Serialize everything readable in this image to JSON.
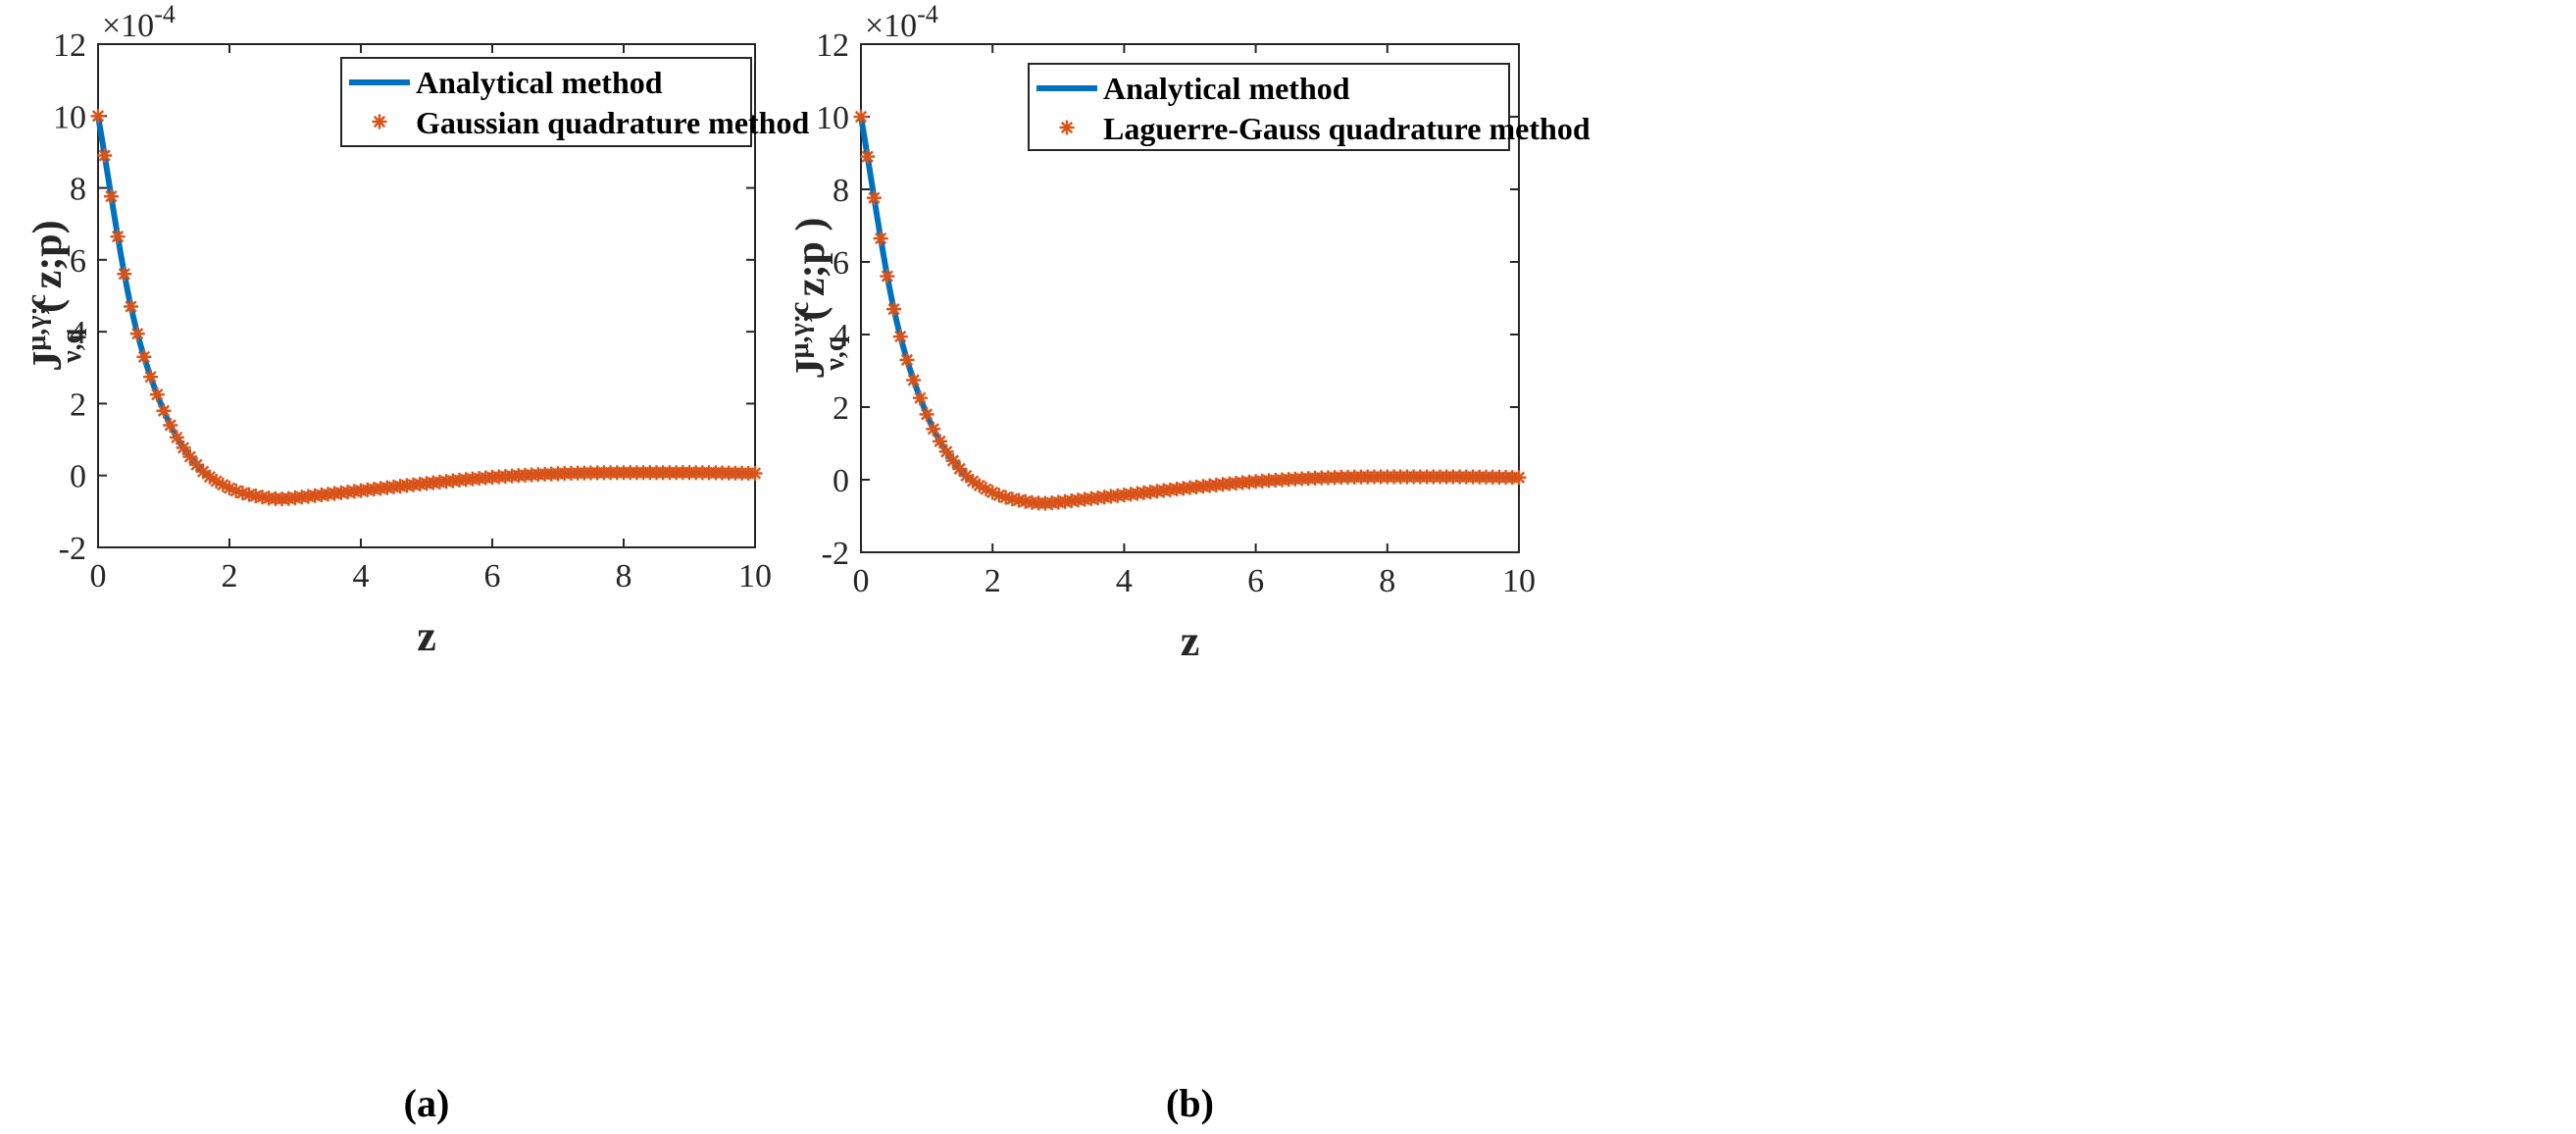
{
  "chart_data": [
    {
      "type": "line",
      "panel_label": "(a)",
      "xlabel": "z",
      "ylabel": {
        "main": "J",
        "sup": "μ,γ;c",
        "sub": "ν,q",
        "args": "( z;p)"
      },
      "multiplier": "×10",
      "multiplier_exp": "-4",
      "xlim": [
        0,
        10
      ],
      "ylim": [
        -2,
        12
      ],
      "xticks": [
        0,
        2,
        4,
        6,
        8,
        10
      ],
      "yticks": [
        -2,
        0,
        2,
        4,
        6,
        8,
        10,
        12
      ],
      "legend_position": "top-right",
      "series": [
        {
          "name": "Analytical method",
          "style": "line",
          "color": "#0072BD"
        },
        {
          "name": "Gaussian quadrature method",
          "style": "asterisk",
          "color": "#D95319"
        }
      ],
      "x": [
        0,
        0.5,
        1,
        1.5,
        2,
        2.5,
        2.8,
        3,
        3.5,
        4,
        5,
        6,
        7,
        8,
        9,
        10
      ],
      "y": [
        10,
        4.7,
        1.8,
        0.3,
        -0.35,
        -0.6,
        -0.65,
        -0.62,
        -0.52,
        -0.42,
        -0.22,
        -0.05,
        0.05,
        0.08,
        0.08,
        0.06
      ]
    },
    {
      "type": "line",
      "panel_label": "(b)",
      "xlabel": "z",
      "ylabel": {
        "main": "J",
        "sup": "μ,γ;c",
        "sub": "ν,q",
        "args": "( z;p )"
      },
      "multiplier": "×10",
      "multiplier_exp": "-4",
      "xlim": [
        0,
        10
      ],
      "ylim": [
        -2,
        12
      ],
      "xticks": [
        0,
        2,
        4,
        6,
        8,
        10
      ],
      "yticks": [
        -2,
        0,
        2,
        4,
        6,
        8,
        10,
        12
      ],
      "legend_position": "top-right",
      "series": [
        {
          "name": "Analytical method",
          "style": "line",
          "color": "#0072BD"
        },
        {
          "name": "Laguerre-Gauss quadrature method",
          "style": "asterisk",
          "color": "#D95319"
        }
      ],
      "x": [
        0,
        0.5,
        1,
        1.5,
        2,
        2.5,
        2.8,
        3,
        3.5,
        4,
        5,
        6,
        7,
        8,
        9,
        10
      ],
      "y": [
        10,
        4.7,
        1.8,
        0.3,
        -0.35,
        -0.6,
        -0.65,
        -0.62,
        -0.52,
        -0.42,
        -0.22,
        -0.05,
        0.05,
        0.08,
        0.08,
        0.06
      ]
    }
  ]
}
